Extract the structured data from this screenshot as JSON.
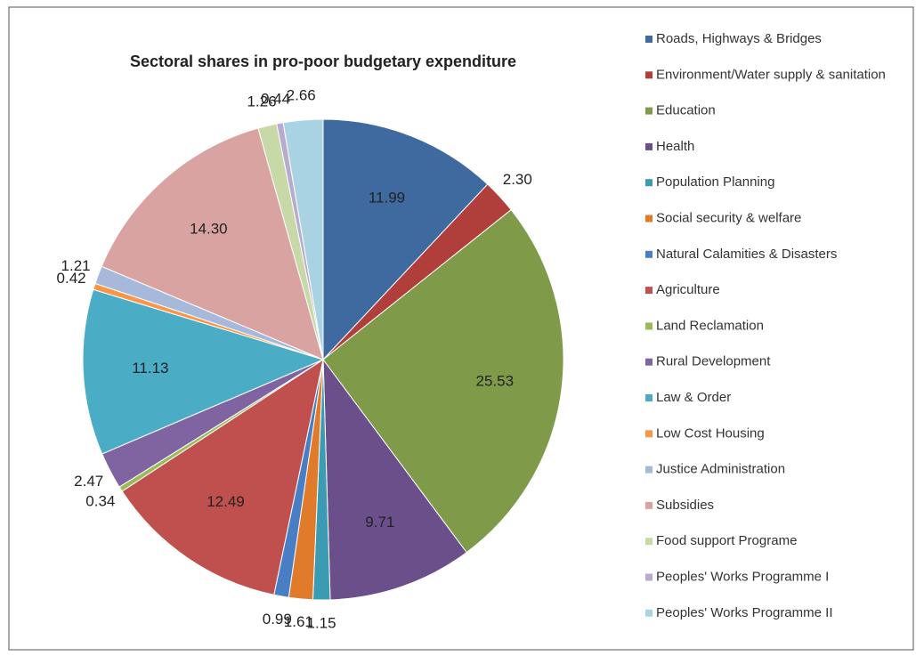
{
  "chart_data": {
    "type": "pie",
    "title": "Sectoral shares in pro-poor  budgetary expenditure",
    "categories": [
      "Roads, Highways & Bridges",
      "Environment/Water supply & sanitation",
      "Education",
      "Health",
      "Population Planning",
      "Social security & welfare",
      "Natural Calamities & Disasters",
      "Agriculture",
      "Land Reclamation",
      "Rural Development",
      "Law & Order",
      "Low Cost Housing",
      "Justice Administration",
      "Subsidies",
      "Food  support Programe",
      "Peoples' Works Programme I",
      "Peoples' Works Programme  II"
    ],
    "values": [
      11.99,
      2.3,
      25.53,
      9.71,
      1.15,
      1.61,
      0.99,
      12.49,
      0.34,
      2.47,
      11.13,
      0.42,
      1.21,
      14.3,
      1.26,
      0.44,
      2.66
    ],
    "value_labels": [
      "11.99",
      "2.30",
      "25.53",
      "9.71",
      "1.15",
      "1.61",
      "0.99",
      "12.49",
      "0.34",
      "2.47",
      "11.13",
      "0.42",
      "1.21",
      "14.30",
      "1.26",
      "0.44",
      "2.66"
    ],
    "colors": [
      "#3F6AA0",
      "#B03F3C",
      "#7F9A48",
      "#6A4F8A",
      "#3A9BB2",
      "#E07B2B",
      "#4A7EC4",
      "#C0504D",
      "#9BBB59",
      "#8064A2",
      "#4BACC6",
      "#F79646",
      "#A7B9DA",
      "#D9A3A2",
      "#C7D9A7",
      "#B9ABCF",
      "#A9D3E3"
    ],
    "legend": "right"
  }
}
